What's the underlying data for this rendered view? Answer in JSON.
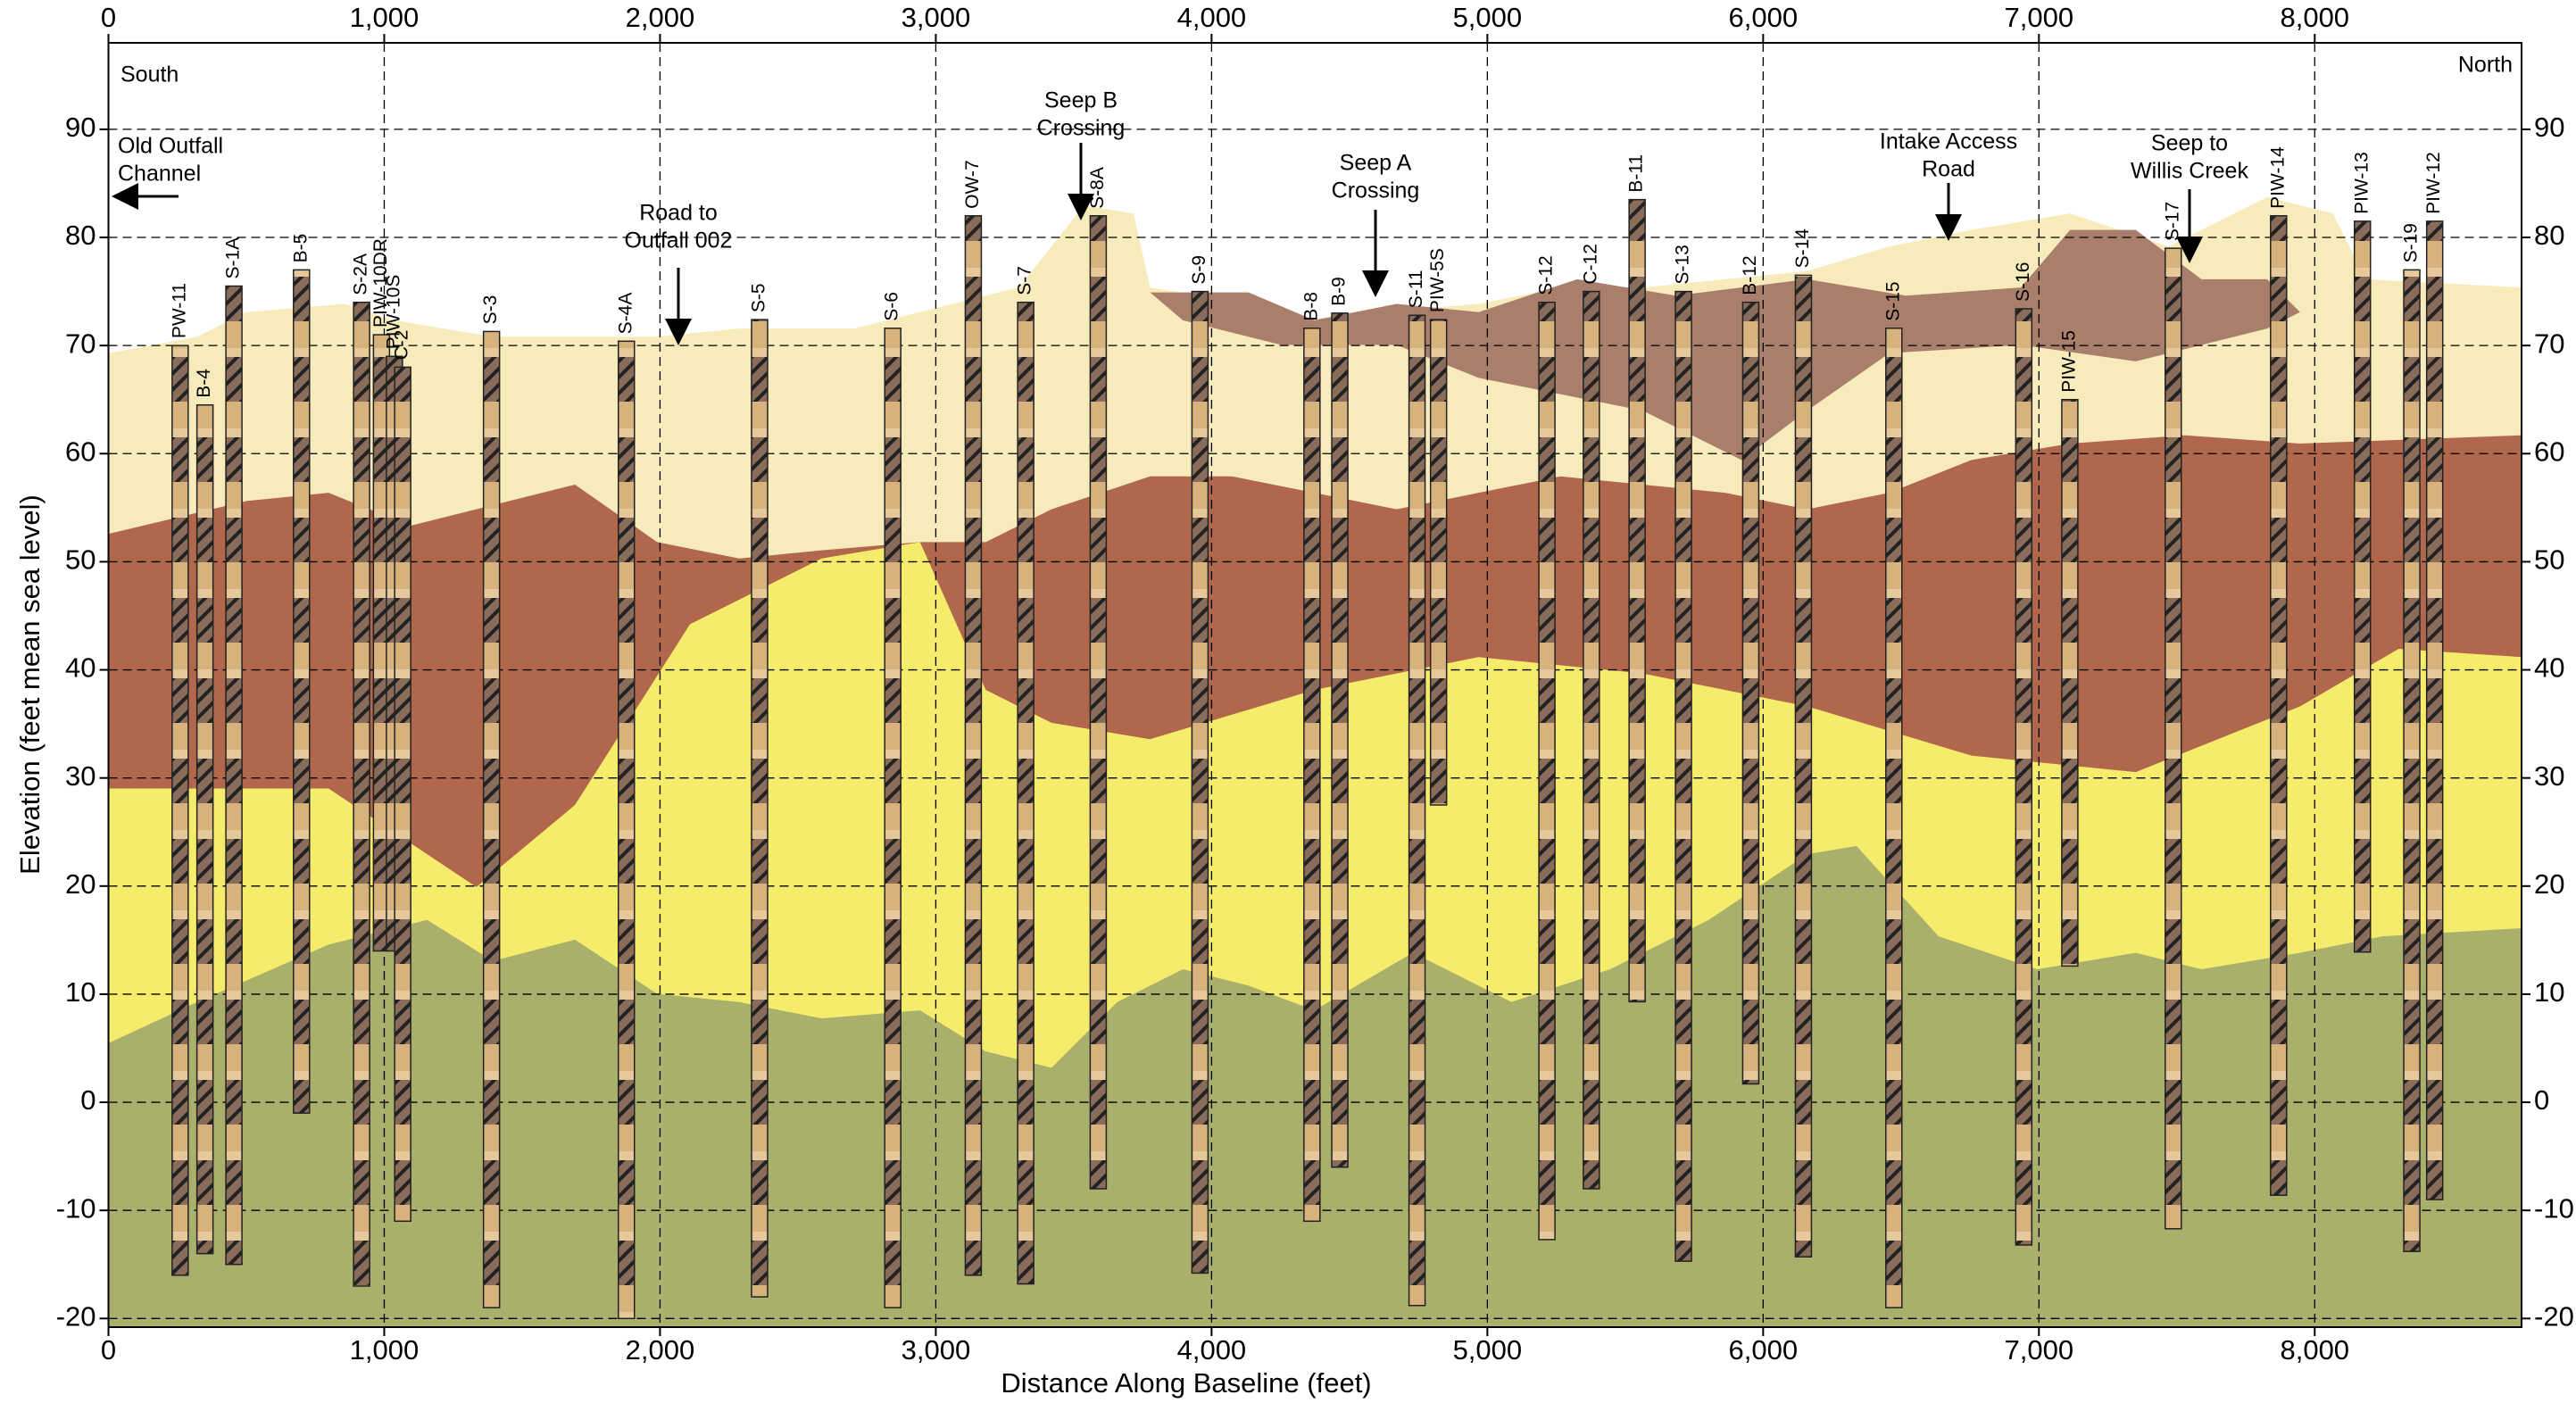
{
  "chart_data": {
    "type": "cross-section",
    "x_label": "Distance Along Baseline (feet)",
    "y_label": "Elevation (feet mean sea level)",
    "xlim": [
      0,
      8750
    ],
    "ylim": [
      -20.8,
      98
    ],
    "xticks": [
      0,
      {
        "value": 1000,
        "label": "1,000"
      },
      {
        "value": 2000,
        "label": "2,000"
      },
      {
        "value": 3000,
        "label": "3,000"
      },
      {
        "value": 4000,
        "label": "4,000"
      },
      {
        "value": 5000,
        "label": "5,000"
      },
      {
        "value": 6000,
        "label": "6,000"
      },
      {
        "value": 7000,
        "label": "7,000"
      },
      {
        "value": 8000,
        "label": "8,000"
      }
    ],
    "yticks": [
      -20,
      -10,
      0,
      10,
      20,
      30,
      40,
      50,
      60,
      70,
      80,
      90
    ],
    "grid": true,
    "annotations": [
      {
        "text": [
          "South"
        ]
      },
      {
        "text": [
          "North"
        ]
      },
      {
        "text": [
          "Old Outfall",
          "Channel"
        ]
      },
      {
        "text": [
          "Road to",
          "Outfall 002"
        ]
      },
      {
        "text": [
          "Seep B",
          "Crossing"
        ]
      },
      {
        "text": [
          "Seep A",
          "Crossing"
        ]
      },
      {
        "text": [
          "Intake Access",
          "Road"
        ]
      },
      {
        "text": [
          "Seep to",
          "Willis Creek"
        ]
      }
    ],
    "borings": [
      {
        "name": "PW-11",
        "x": 260,
        "top": 70,
        "bottom": -16
      },
      {
        "name": "B-4",
        "x": 350,
        "top": 64.5,
        "bottom": -14
      },
      {
        "name": "S-1A",
        "x": 455,
        "top": 75.5,
        "bottom": -15
      },
      {
        "name": "B-5",
        "x": 700,
        "top": 77,
        "bottom": -1
      },
      {
        "name": "S-2A",
        "x": 918,
        "top": 74,
        "bottom": -17
      },
      {
        "name": "PIW-10DR",
        "x": 990,
        "top": 71,
        "bottom": 14
      },
      {
        "name": "PIW-10S",
        "x": 1037,
        "top": 69,
        "bottom": 14
      },
      {
        "name": "C-2",
        "x": 1067,
        "top": 68,
        "bottom": -11
      },
      {
        "name": "S-3",
        "x": 1389,
        "top": 71.3,
        "bottom": -19
      },
      {
        "name": "S-4A",
        "x": 1878,
        "top": 70.4,
        "bottom": -20
      },
      {
        "name": "S-5",
        "x": 2361,
        "top": 72.4,
        "bottom": -18
      },
      {
        "name": "S-6",
        "x": 2844,
        "top": 71.6,
        "bottom": -19
      },
      {
        "name": "OW-7",
        "x": 3136,
        "top": 82,
        "bottom": -16
      },
      {
        "name": "S-7",
        "x": 3326,
        "top": 74,
        "bottom": -16.8
      },
      {
        "name": "S-8A",
        "x": 3589,
        "top": 82,
        "bottom": -8
      },
      {
        "name": "S-9",
        "x": 3958,
        "top": 75,
        "bottom": -15.8
      },
      {
        "name": "B-8",
        "x": 4364,
        "top": 71.6,
        "bottom": -11
      },
      {
        "name": "B-9",
        "x": 4465,
        "top": 73,
        "bottom": -6
      },
      {
        "name": "S-11",
        "x": 4745,
        "top": 72.8,
        "bottom": -18.8
      },
      {
        "name": "PIW-5S",
        "x": 4823,
        "top": 72.4,
        "bottom": 27.5
      },
      {
        "name": "S-12",
        "x": 5216,
        "top": 74,
        "bottom": -12.7
      },
      {
        "name": "C-12",
        "x": 5377,
        "top": 75,
        "bottom": -8
      },
      {
        "name": "B-11",
        "x": 5543,
        "top": 83.5,
        "bottom": 9.3
      },
      {
        "name": "S-13",
        "x": 5711,
        "top": 75,
        "bottom": -14.7
      },
      {
        "name": "B-12",
        "x": 5955,
        "top": 74,
        "bottom": 1.7
      },
      {
        "name": "S-14",
        "x": 6146,
        "top": 76.5,
        "bottom": -14.3
      },
      {
        "name": "S-15",
        "x": 6474,
        "top": 71.6,
        "bottom": -19
      },
      {
        "name": "S-16",
        "x": 6945,
        "top": 73.4,
        "bottom": -13.2
      },
      {
        "name": "PIW-15",
        "x": 7112,
        "top": 65,
        "bottom": 12.6
      },
      {
        "name": "S-17",
        "x": 7487,
        "top": 79,
        "bottom": -11.7
      },
      {
        "name": "PIW-14",
        "x": 7869,
        "top": 82,
        "bottom": -8.6
      },
      {
        "name": "PIW-13",
        "x": 8173,
        "top": 81.5,
        "bottom": 13.9
      },
      {
        "name": "S-19",
        "x": 8352,
        "top": 77,
        "bottom": -13.8
      },
      {
        "name": "PIW-12",
        "x": 8435,
        "top": 81.5,
        "bottom": -9
      }
    ]
  }
}
